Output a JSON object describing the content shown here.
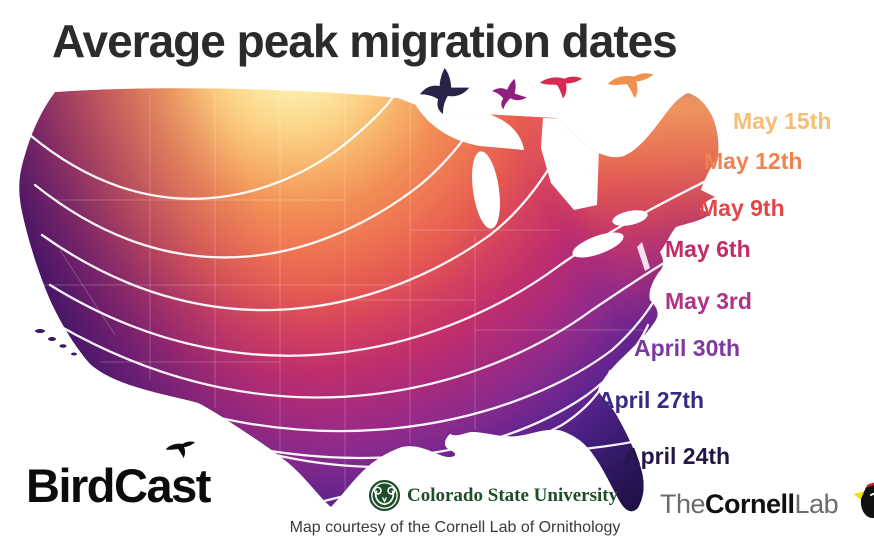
{
  "title": "Average peak migration dates",
  "caption": "Map courtesy of the Cornell Lab of Ornithology",
  "date_labels": [
    {
      "text": "May 15th",
      "color": "#f6bd75"
    },
    {
      "text": "May 12th",
      "color": "#f0824f"
    },
    {
      "text": "May 9th",
      "color": "#e0484a"
    },
    {
      "text": "May 6th",
      "color": "#c42a67"
    },
    {
      "text": "May 3rd",
      "color": "#ad3486"
    },
    {
      "text": "April 30th",
      "color": "#7d3a9e"
    },
    {
      "text": "April 27th",
      "color": "#3b2a82"
    },
    {
      "text": "April 24th",
      "color": "#241745"
    }
  ],
  "birds": [
    {
      "color": "#2b2347"
    },
    {
      "color": "#8e1f7e"
    },
    {
      "color": "#d62a50"
    },
    {
      "color": "#f0914e"
    }
  ],
  "logos": {
    "birdcast": "BirdCast",
    "csu": "Colorado State University",
    "cornell": {
      "the": "The",
      "name": "Cornell",
      "lab": "Lab"
    }
  },
  "map": {
    "region": "Contiguous United States",
    "palette": {
      "latest_yellow": "#fdf7cb",
      "late_orange": "#f7b169",
      "orange_red": "#ee7452",
      "crimson": "#d4405f",
      "magenta": "#a72a7e",
      "purple": "#64248f",
      "earliest_dark": "#1b0e3c",
      "contour_line": "#ffffff"
    }
  },
  "chart_data": {
    "type": "heatmap",
    "title": "Average peak migration dates",
    "legend_entries": [
      "May 15th",
      "May 12th",
      "May 9th",
      "May 6th",
      "May 3rd",
      "April 30th",
      "April 27th",
      "April 24th"
    ],
    "description": "Contour map of the contiguous United States showing average peak spring bird migration dates: earliest (April 24th, dark purple) in Florida and the Gulf Southeast, progressing through late April purples and early May crimson/orange bands toward the latest dates (May 15th, pale yellow) in the north-central US and northern New England. White contour lines separate each 3-day band, sweeping from the Pacific coast northeast across the country."
  }
}
